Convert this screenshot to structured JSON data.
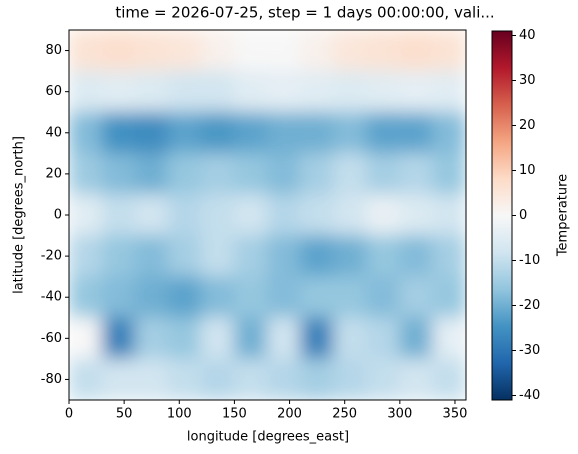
{
  "chart_data": {
    "type": "heatmap",
    "title": "time = 2026-07-25, step = 1 days 00:00:00, vali...",
    "x_label": "longitude [degrees_east]",
    "y_label": "latitude [degrees_north]",
    "colorbar_label": "Temperature",
    "colormap": "RdBu_r",
    "x": [
      15,
      45,
      75,
      105,
      135,
      165,
      195,
      225,
      255,
      285,
      315,
      345
    ],
    "y": [
      80,
      60,
      40,
      20,
      0,
      -20,
      -40,
      -60,
      -80
    ],
    "z": [
      [
        6,
        7,
        6,
        5,
        2,
        0,
        0,
        2,
        5,
        6,
        7,
        6
      ],
      [
        -6,
        -5,
        -6,
        -8,
        -8,
        -5,
        -4,
        -5,
        -6,
        -5,
        -4,
        -5
      ],
      [
        -18,
        -25,
        -26,
        -22,
        -24,
        -22,
        -20,
        -20,
        -18,
        -22,
        -22,
        -18
      ],
      [
        -15,
        -18,
        -20,
        -16,
        -14,
        -16,
        -18,
        -14,
        -10,
        -14,
        -12,
        -16
      ],
      [
        -5,
        -10,
        -8,
        -12,
        -10,
        -8,
        -12,
        -10,
        -8,
        -3,
        -6,
        -8
      ],
      [
        -12,
        -16,
        -18,
        -14,
        -10,
        -14,
        -18,
        -22,
        -20,
        -16,
        -18,
        -14
      ],
      [
        -16,
        -18,
        -20,
        -22,
        -18,
        -16,
        -18,
        -16,
        -16,
        -18,
        -14,
        -16
      ],
      [
        0,
        -28,
        -14,
        -16,
        -8,
        -20,
        -8,
        -28,
        -10,
        -12,
        -20,
        -4
      ],
      [
        -10,
        -8,
        -8,
        -10,
        -12,
        -10,
        -12,
        -14,
        -12,
        -10,
        -8,
        -10
      ]
    ],
    "xlim": [
      0,
      360
    ],
    "xticks": [
      0,
      50,
      100,
      150,
      200,
      250,
      300,
      350
    ],
    "ylim": [
      -90,
      90
    ],
    "yticks": [
      -80,
      -60,
      -40,
      -20,
      0,
      20,
      40,
      60,
      80
    ],
    "clim": [
      -41,
      41
    ],
    "cticks": [
      -40,
      -30,
      -20,
      -10,
      0,
      10,
      20,
      30,
      40
    ]
  }
}
